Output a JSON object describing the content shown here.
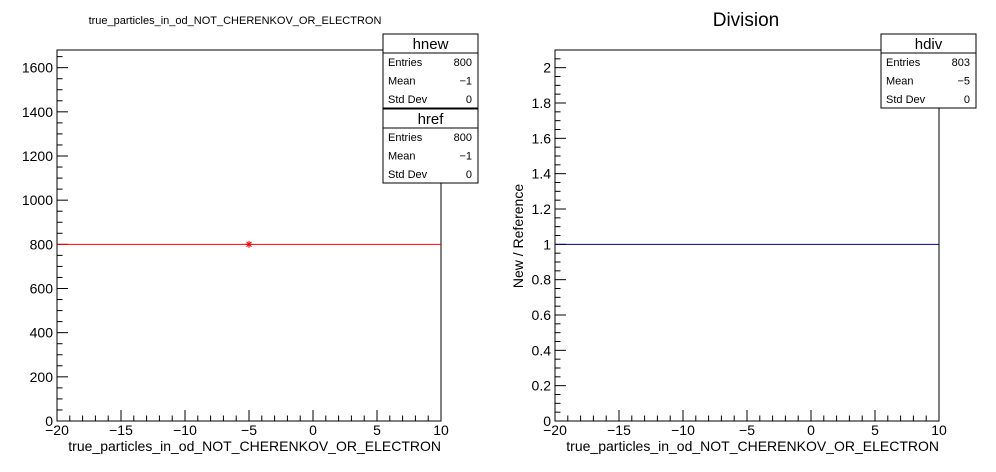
{
  "chart_data": [
    {
      "type": "line",
      "title": "true_particles_in_od_NOT_CHERENKOV_OR_ELECTRON",
      "xlabel": "true_particles_in_od_NOT_CHERENKOV_OR_ELECTRON",
      "ylabel": "",
      "xlim": [
        -20,
        10
      ],
      "ylim": [
        0,
        1680
      ],
      "x_ticks": [
        -20,
        -15,
        -10,
        -5,
        0,
        5,
        10
      ],
      "y_ticks": [
        0,
        200,
        400,
        600,
        800,
        1000,
        1200,
        1400,
        1600
      ],
      "grid": false,
      "series": [
        {
          "name": "hnew",
          "color": "#ff0000",
          "x": [
            -20,
            10
          ],
          "values": [
            800,
            800
          ]
        },
        {
          "name": "href",
          "color": "#ff0000",
          "marker": "star",
          "x": [
            -5
          ],
          "values": [
            800
          ]
        }
      ],
      "stats": [
        {
          "name": "hnew",
          "rows": [
            {
              "label": "Entries",
              "value": "800"
            },
            {
              "label": "Mean",
              "value": "−1"
            },
            {
              "label": "Std Dev",
              "value": "0"
            }
          ]
        },
        {
          "name": "href",
          "rows": [
            {
              "label": "Entries",
              "value": "800"
            },
            {
              "label": "Mean",
              "value": "−1"
            },
            {
              "label": "Std Dev",
              "value": "0"
            }
          ]
        }
      ]
    },
    {
      "type": "line",
      "title": "Division",
      "xlabel": "true_particles_in_od_NOT_CHERENKOV_OR_ELECTRON",
      "ylabel": "New / Reference",
      "xlim": [
        -20,
        10
      ],
      "ylim": [
        0,
        2.1
      ],
      "x_ticks": [
        -20,
        -15,
        -10,
        -5,
        0,
        5,
        10
      ],
      "y_ticks": [
        0,
        0.2,
        0.4,
        0.6,
        0.8,
        1,
        1.2,
        1.4,
        1.6,
        1.8,
        2
      ],
      "grid": false,
      "series": [
        {
          "name": "hdiv",
          "color": "#000080",
          "x": [
            -20,
            10
          ],
          "values": [
            1,
            1
          ]
        }
      ],
      "stats": [
        {
          "name": "hdiv",
          "rows": [
            {
              "label": "Entries",
              "value": "803"
            },
            {
              "label": "Mean",
              "value": "−5"
            },
            {
              "label": "Std Dev",
              "value": "0"
            }
          ]
        }
      ]
    }
  ]
}
